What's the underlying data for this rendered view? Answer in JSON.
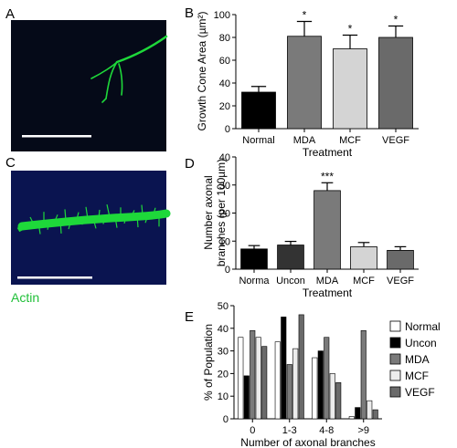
{
  "panels": {
    "a": {
      "letter": "A"
    },
    "b": {
      "letter": "B"
    },
    "c": {
      "letter": "C",
      "stain_label": "Actin",
      "stain_color": "#22c03a"
    },
    "d": {
      "letter": "D"
    },
    "e": {
      "letter": "E"
    }
  },
  "colors": {
    "micrograph_bg_a": "#050a18",
    "micrograph_bg_c": "#0a1450",
    "fluor_green": "#1ed83a",
    "scale_bar": "#ffffff"
  },
  "chart_data": [
    {
      "type": "bar",
      "panel": "B",
      "categories": [
        "Normal",
        "MDA",
        "MCF",
        "VEGF"
      ],
      "values": [
        32,
        81,
        70,
        80
      ],
      "errors": [
        5,
        13,
        12,
        10
      ],
      "significance": [
        "",
        "*",
        "*",
        "*"
      ],
      "colors": [
        "#000000",
        "#7a7a7a",
        "#d4d4d4",
        "#6a6a6a"
      ],
      "xlabel": "Treatment",
      "ylabel": "Growth Cone Area (µm²)",
      "ylim": [
        0,
        100
      ],
      "yticks": [
        "0",
        "20",
        "40",
        "60",
        "80",
        "100"
      ]
    },
    {
      "type": "bar",
      "panel": "D",
      "categories": [
        "Normal",
        "Uncon",
        "MDA",
        "MCF",
        "VEGF"
      ],
      "category_labels": [
        "Norma",
        "Uncon",
        "MDA",
        "MCF",
        "VEGF"
      ],
      "values": [
        7.2,
        8.6,
        28,
        8,
        6.7
      ],
      "errors": [
        1.2,
        1.3,
        2.8,
        1.5,
        1.3
      ],
      "significance": [
        "",
        "",
        "***",
        "",
        ""
      ],
      "colors": [
        "#000000",
        "#333333",
        "#7a7a7a",
        "#d4d4d4",
        "#6a6a6a"
      ],
      "xlabel": "Treatment",
      "ylabel_line1": "Number axonal",
      "ylabel_line2": "branches (per 100µm)",
      "ylim": [
        0,
        40
      ],
      "yticks": [
        "0",
        "10",
        "20",
        "30",
        "40"
      ]
    },
    {
      "type": "bar",
      "panel": "E",
      "categories": [
        "0",
        "1-3",
        "4-8",
        ">9"
      ],
      "series": [
        {
          "name": "Normal",
          "values": [
            36,
            34,
            27,
            1
          ],
          "color": "#ffffff"
        },
        {
          "name": "Uncon",
          "values": [
            19,
            45,
            30,
            5
          ],
          "color": "#000000"
        },
        {
          "name": "MDA",
          "values": [
            39,
            24,
            36,
            39
          ],
          "color": "#7a7a7a"
        },
        {
          "name": "MCF",
          "values": [
            36,
            31,
            20,
            8
          ],
          "color": "#ececec"
        },
        {
          "name": "VEGF",
          "values": [
            32,
            46,
            16,
            4
          ],
          "color": "#6a6a6a"
        }
      ],
      "xlabel": "Number of axonal branches",
      "ylabel": "% of Population",
      "ylim": [
        0,
        50
      ],
      "yticks": [
        "0",
        "10",
        "20",
        "30",
        "40",
        "50"
      ],
      "legend_position": "right"
    }
  ]
}
